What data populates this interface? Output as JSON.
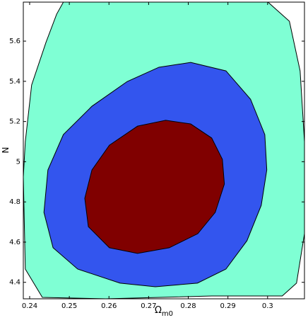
{
  "chart_data": {
    "type": "contour",
    "xlabel": {
      "main": "Ω",
      "sub": "m0"
    },
    "ylabel": "N",
    "xlim": [
      0.2384,
      0.3093
    ],
    "ylim": [
      4.318,
      5.794
    ],
    "xticks": [
      0.24,
      0.25,
      0.26,
      0.27,
      0.28,
      0.29,
      0.3
    ],
    "yticks": [
      4.4,
      4.6,
      4.8,
      5,
      5.2,
      5.4,
      5.6
    ],
    "regions": [
      {
        "color": "#7fffd4",
        "x": [
          0.2485,
          0.3001,
          0.3055,
          0.3082,
          0.3093,
          0.3093,
          0.3073,
          0.3037,
          0.2859,
          0.2592,
          0.2432,
          0.2389,
          0.2384,
          0.2389,
          0.2405,
          0.2441,
          0.2468
        ],
        "y": [
          5.794,
          5.794,
          5.699,
          5.452,
          5.1,
          4.642,
          4.396,
          4.332,
          4.332,
          4.318,
          4.325,
          4.466,
          4.924,
          5.1,
          5.382,
          5.593,
          5.734
        ]
      },
      {
        "color": "#3355ee",
        "x": [
          0.2806,
          0.2895,
          0.2957,
          0.2993,
          0.2998,
          0.2984,
          0.2948,
          0.2895,
          0.2823,
          0.2717,
          0.2628,
          0.2521,
          0.2459,
          0.2436,
          0.2446,
          0.2485,
          0.2557,
          0.2646,
          0.2726
        ],
        "y": [
          5.494,
          5.452,
          5.311,
          5.135,
          4.959,
          4.783,
          4.607,
          4.466,
          4.396,
          4.378,
          4.396,
          4.466,
          4.572,
          4.748,
          4.959,
          5.135,
          5.276,
          5.399,
          5.47
        ]
      },
      {
        "color": "#800000",
        "x": [
          0.2743,
          0.2806,
          0.2859,
          0.2886,
          0.2891,
          0.2868,
          0.2824,
          0.2752,
          0.2672,
          0.2601,
          0.2548,
          0.2539,
          0.2557,
          0.2601,
          0.2672
        ],
        "y": [
          5.206,
          5.188,
          5.118,
          5.012,
          4.889,
          4.748,
          4.642,
          4.572,
          4.544,
          4.572,
          4.677,
          4.818,
          4.959,
          5.082,
          5.177
        ]
      }
    ]
  }
}
